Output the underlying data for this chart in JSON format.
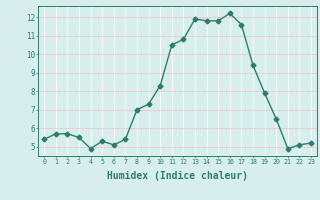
{
  "x": [
    0,
    1,
    2,
    3,
    4,
    5,
    6,
    7,
    8,
    9,
    10,
    11,
    12,
    13,
    14,
    15,
    16,
    17,
    18,
    19,
    20,
    21,
    22,
    23
  ],
  "y": [
    5.4,
    5.7,
    5.7,
    5.5,
    4.9,
    5.3,
    5.1,
    5.4,
    7.0,
    7.3,
    8.3,
    10.5,
    10.8,
    11.9,
    11.8,
    11.8,
    12.2,
    11.6,
    9.4,
    7.9,
    6.5,
    4.9,
    5.1,
    5.2
  ],
  "line_color": "#2d7d6e",
  "marker": "D",
  "marker_size": 2.5,
  "bg_color": "#d7eeed",
  "grid_color_major": "#e8c8c8",
  "grid_color_minor": "#ffffff",
  "axes_color": "#2d7d6e",
  "xlabel": "Humidex (Indice chaleur)",
  "xlabel_fontsize": 7,
  "ylabel_fontsize": 6,
  "yticks": [
    5,
    6,
    7,
    8,
    9,
    10,
    11,
    12
  ],
  "xticks": [
    0,
    1,
    2,
    3,
    4,
    5,
    6,
    7,
    8,
    9,
    10,
    11,
    12,
    13,
    14,
    15,
    16,
    17,
    18,
    19,
    20,
    21,
    22,
    23
  ],
  "xlim": [
    -0.5,
    23.5
  ],
  "ylim": [
    4.5,
    12.6
  ]
}
